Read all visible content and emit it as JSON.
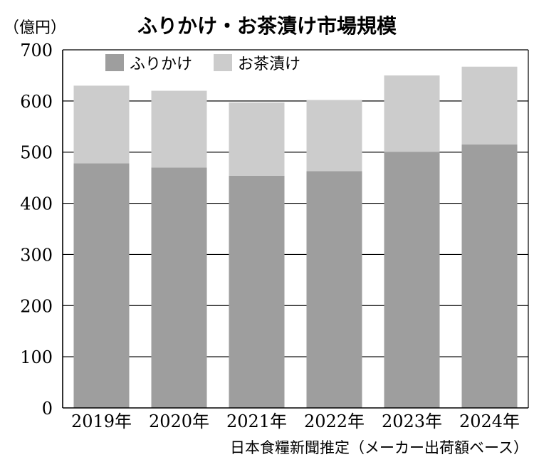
{
  "chart_data": {
    "type": "bar",
    "stacked": true,
    "title": "ふりかけ・お茶漬け市場規模",
    "unit_label": "（億円）",
    "categories": [
      "2019年",
      "2020年",
      "2021年",
      "2022年",
      "2023年",
      "2024年"
    ],
    "series": [
      {
        "name": "ふりかけ",
        "values": [
          478,
          470,
          454,
          463,
          500,
          515
        ],
        "color": "#9e9e9e"
      },
      {
        "name": "お茶漬け",
        "values": [
          152,
          150,
          143,
          139,
          150,
          152
        ],
        "color": "#cccccc"
      }
    ],
    "ylim": [
      0,
      700
    ],
    "yticks": [
      0,
      100,
      200,
      300,
      400,
      500,
      600,
      700
    ],
    "grid": true,
    "legend_position": "top-left",
    "source": "日本食糧新聞推定（メーカー出荷額ベース）"
  }
}
